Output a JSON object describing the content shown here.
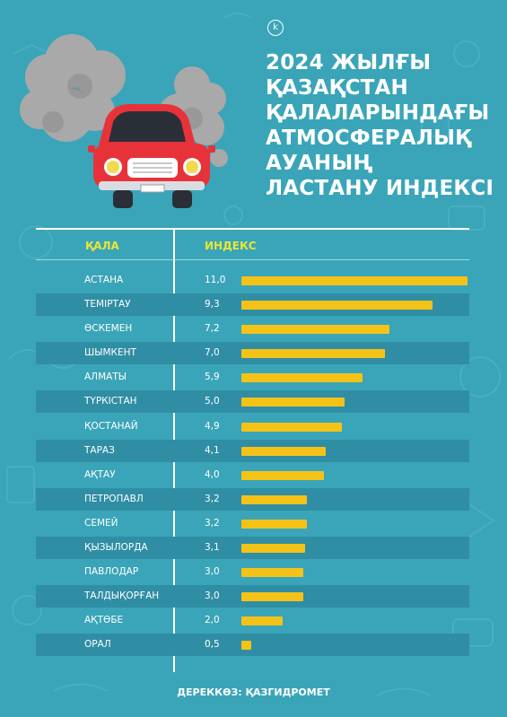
{
  "logo_letter": "k",
  "title_lines": [
    "2024 ЖЫЛҒЫ",
    "ҚАЗАҚСТАН",
    "ҚАЛАЛАРЫНДАҒЫ",
    "АТМОСФЕРАЛЫҚ",
    "АУАНЫҢ",
    "ЛАСТАНУ ИНДЕКСІ"
  ],
  "colors": {
    "background": "#3aa5b8",
    "band": "#2f8ea4",
    "bar": "#f5c218",
    "header": "#e8e636",
    "text": "#ffffff",
    "car_body": "#e8323a"
  },
  "chart_data": {
    "type": "bar",
    "orientation": "horizontal",
    "column_headers": {
      "city": "ҚАЛА",
      "index": "ИНДЕКС"
    },
    "categories": [
      "АСТАНА",
      "ТЕМІРТАУ",
      "ӨСКЕМЕН",
      "ШЫМКЕНТ",
      "АЛМАТЫ",
      "ТҮРКІСТАН",
      "ҚОСТАНАЙ",
      "ТАРАЗ",
      "АҚТАУ",
      "ПЕТРОПАВЛ",
      "СЕМЕЙ",
      "ҚЫЗЫЛОРДА",
      "ПАВЛОДАР",
      "ТАЛДЫҚОРҒАН",
      "АҚТӨБЕ",
      "ОРАЛ"
    ],
    "values": [
      11.0,
      9.3,
      7.2,
      7.0,
      5.9,
      5.0,
      4.9,
      4.1,
      4.0,
      3.2,
      3.2,
      3.1,
      3.0,
      3.0,
      2.0,
      0.5
    ],
    "value_labels": [
      "11,0",
      "9,3",
      "7,2",
      "7,0",
      "5,9",
      "5,0",
      "4,9",
      "4,1",
      "4,0",
      "3,2",
      "3,2",
      "3,1",
      "3,0",
      "3,0",
      "2,0",
      "0,5"
    ],
    "xlim": [
      0,
      11.0
    ],
    "source": "ДЕРЕККӨЗ: ҚАЗГИДРОМЕТ"
  }
}
